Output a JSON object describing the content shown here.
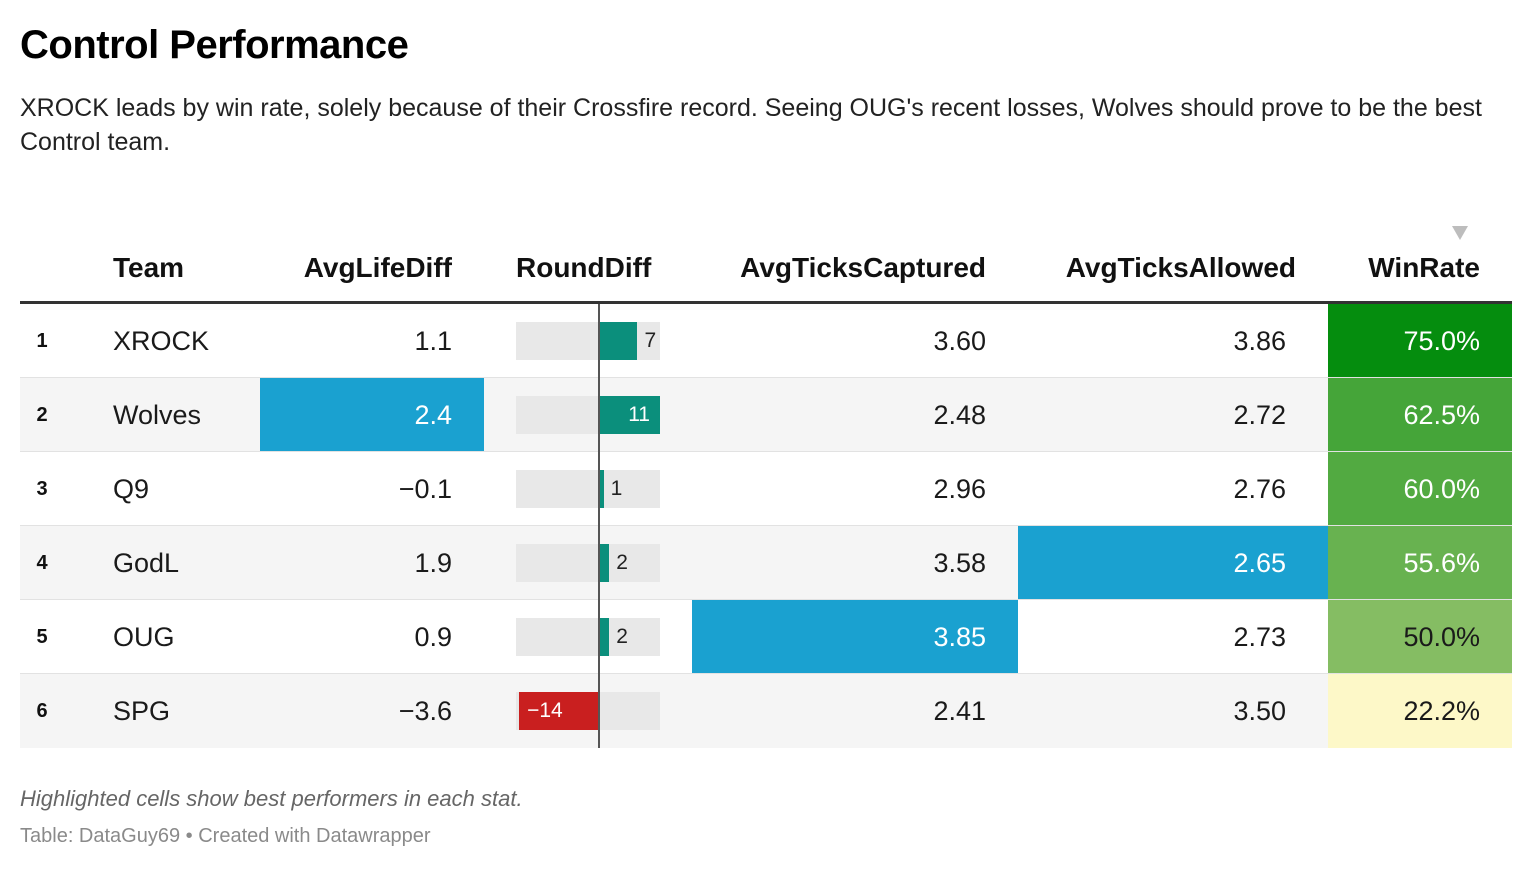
{
  "title": "Control Performance",
  "subtitle": "XROCK leads by win rate, solely because of their Crossfire record. Seeing OUG's recent losses, Wolves should prove to be the best Control team.",
  "note": "Highlighted cells show best performers in each stat.",
  "source": "Table: DataGuy69 • Created with Datawrapper",
  "colors": {
    "highlight": "#1aa1d0",
    "bar_positive": "#0b8f7c",
    "bar_negative": "#c91f1f",
    "bar_track": "#e8e8e8",
    "winrate_scale": [
      "#fdf8c8",
      "#8cc068",
      "#058d0e"
    ]
  },
  "icons": {
    "sort": "sort-descending-icon"
  },
  "chart_data": {
    "type": "table",
    "sorted_by": "WinRate",
    "sort_direction": "descending",
    "columns": [
      "",
      "Team",
      "AvgLifeDiff",
      "RoundDiff",
      "AvgTicksCaptured",
      "AvgTicksAllowed",
      "WinRate"
    ],
    "round_diff_range": [
      -14,
      11
    ],
    "rows": [
      {
        "rank": "1",
        "team": "XROCK",
        "avg_life_diff": "1.1",
        "round_diff": 7,
        "round_diff_label": "7",
        "avg_ticks_captured": "3.60",
        "avg_ticks_allowed": "3.86",
        "win_rate": "75.0%",
        "win_rate_value": 75.0,
        "hl_life": false,
        "hl_cap": false,
        "hl_alw": false
      },
      {
        "rank": "2",
        "team": "Wolves",
        "avg_life_diff": "2.4",
        "round_diff": 11,
        "round_diff_label": "11",
        "avg_ticks_captured": "2.48",
        "avg_ticks_allowed": "2.72",
        "win_rate": "62.5%",
        "win_rate_value": 62.5,
        "hl_life": true,
        "hl_cap": false,
        "hl_alw": false
      },
      {
        "rank": "3",
        "team": "Q9",
        "avg_life_diff": "−0.1",
        "round_diff": 1,
        "round_diff_label": "1",
        "avg_ticks_captured": "2.96",
        "avg_ticks_allowed": "2.76",
        "win_rate": "60.0%",
        "win_rate_value": 60.0,
        "hl_life": false,
        "hl_cap": false,
        "hl_alw": false
      },
      {
        "rank": "4",
        "team": "GodL",
        "avg_life_diff": "1.9",
        "round_diff": 2,
        "round_diff_label": "2",
        "avg_ticks_captured": "3.58",
        "avg_ticks_allowed": "2.65",
        "win_rate": "55.6%",
        "win_rate_value": 55.6,
        "hl_life": false,
        "hl_cap": false,
        "hl_alw": true
      },
      {
        "rank": "5",
        "team": "OUG",
        "avg_life_diff": "0.9",
        "round_diff": 2,
        "round_diff_label": "2",
        "avg_ticks_captured": "3.85",
        "avg_ticks_allowed": "2.73",
        "win_rate": "50.0%",
        "win_rate_value": 50.0,
        "hl_life": false,
        "hl_cap": true,
        "hl_alw": false
      },
      {
        "rank": "6",
        "team": "SPG",
        "avg_life_diff": "−3.6",
        "round_diff": -14,
        "round_diff_label": "−14",
        "avg_ticks_captured": "2.41",
        "avg_ticks_allowed": "3.50",
        "win_rate": "22.2%",
        "win_rate_value": 22.2,
        "hl_life": false,
        "hl_cap": false,
        "hl_alw": false
      }
    ]
  }
}
